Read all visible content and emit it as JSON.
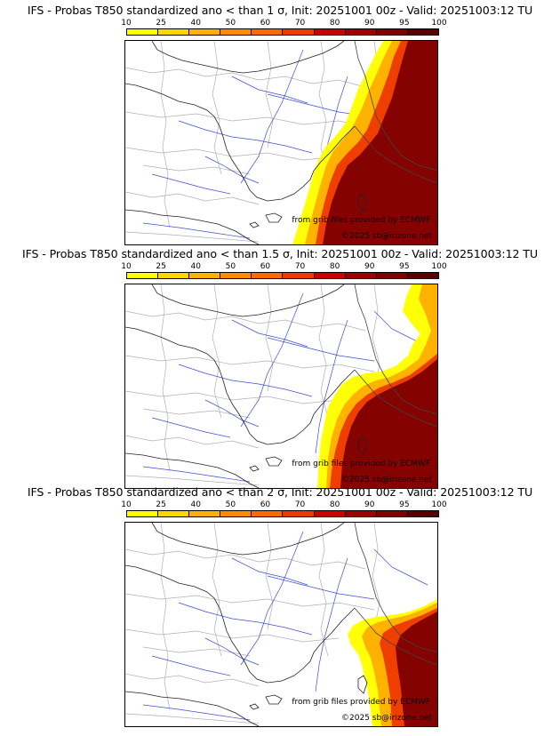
{
  "colorbar": {
    "ticks": [
      "10",
      "25",
      "40",
      "50",
      "60",
      "70",
      "80",
      "90",
      "95",
      "100"
    ],
    "colors": [
      "#ffff00",
      "#ffd700",
      "#ffb000",
      "#ff8c00",
      "#ff6a00",
      "#ee3b00",
      "#cc0000",
      "#a00000",
      "#800000",
      "#5a0000"
    ]
  },
  "panels": [
    {
      "title": "IFS - Probas T850  standardized ano < than 1 σ, Init: 20251001 00z - Valid: 20251003:12 TU",
      "credit_source": "from grib files provided by ECMWF",
      "credit_copyright": "©2025 sb@irizone.net"
    },
    {
      "title": "IFS - Probas T850  standardized ano < than 1.5 σ, Init: 20251001 00z - Valid: 20251003:12 TU",
      "credit_source": "from grib files provided by ECMWF",
      "credit_copyright": "©2025 sb@irizone.net"
    },
    {
      "title": "IFS - Probas T850  standardized ano < than 2 σ, Init: 20251001 00z - Valid: 20251003:12 TU",
      "credit_source": "from grib files provided by ECMWF",
      "credit_copyright": "©2025 sb@irizone.net"
    }
  ]
}
